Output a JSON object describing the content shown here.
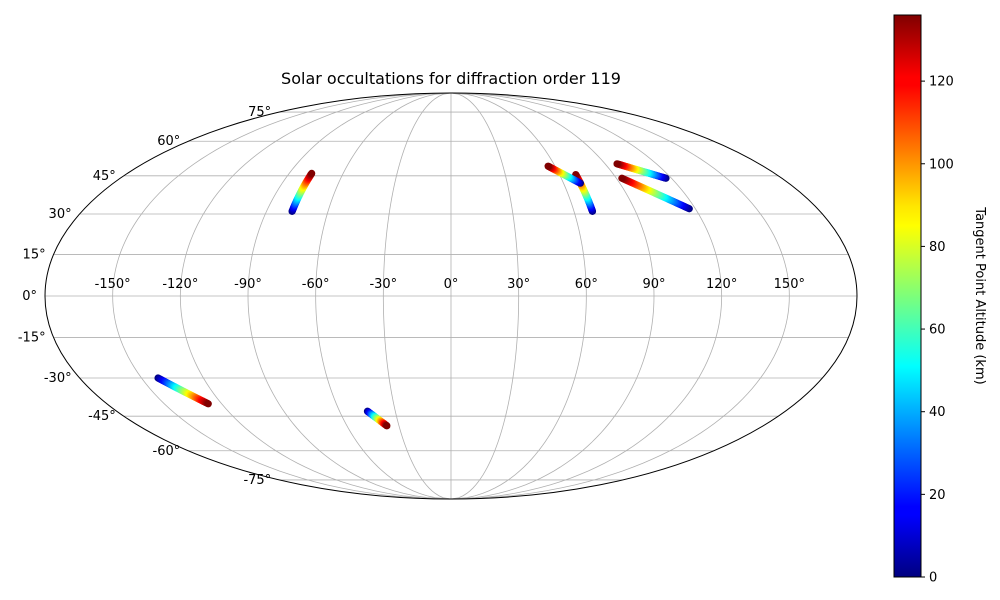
{
  "chart_data": {
    "type": "scatter",
    "projection": "mollweide",
    "title": "Solar occultations for diffraction order 119",
    "lon_ticks": [
      -150,
      -120,
      -90,
      -60,
      -30,
      0,
      30,
      60,
      90,
      120,
      150
    ],
    "lon_tick_labels": [
      "-150°",
      "-120°",
      "-90°",
      "-60°",
      "-30°",
      "0°",
      "30°",
      "60°",
      "90°",
      "120°",
      "150°"
    ],
    "lat_ticks": [
      75,
      60,
      45,
      30,
      15,
      0,
      -15,
      -30,
      -45,
      -60,
      -75
    ],
    "lat_tick_labels": [
      "75°",
      "60°",
      "45°",
      "30°",
      "15°",
      "0°",
      "-15°",
      "-30°",
      "-45°",
      "-60°",
      "-75°"
    ],
    "grid": true,
    "colorbar": {
      "label": "Tangent Point Altitude (km)",
      "colormap": "jet",
      "range": [
        0,
        136
      ],
      "ticks": [
        0,
        20,
        40,
        60,
        80,
        100,
        120
      ],
      "tick_labels": [
        "0",
        "20",
        "40",
        "60",
        "80",
        "100",
        "120"
      ]
    },
    "tracks": [
      {
        "start": {
          "lon": -77.5,
          "lat": 31,
          "alt": 0
        },
        "end": {
          "lon": -77.5,
          "lat": 46,
          "alt": 136
        }
      },
      {
        "start": {
          "lon": 69,
          "lat": 31,
          "alt": 0
        },
        "end": {
          "lon": 69,
          "lat": 45.5,
          "alt": 136
        }
      },
      {
        "start": {
          "lon": 69,
          "lat": 42,
          "alt": 0
        },
        "end": {
          "lon": 56,
          "lat": 49,
          "alt": 136
        }
      },
      {
        "start": {
          "lon": 117,
          "lat": 44,
          "alt": 0
        },
        "end": {
          "lon": 97,
          "lat": 50,
          "alt": 136
        }
      },
      {
        "start": {
          "lon": 117,
          "lat": 32,
          "alt": 0
        },
        "end": {
          "lon": 93,
          "lat": 44,
          "alt": 136
        }
      },
      {
        "start": {
          "lon": -142,
          "lat": -30,
          "alt": 0
        },
        "end": {
          "lon": -127,
          "lat": -40,
          "alt": 136
        }
      },
      {
        "start": {
          "lon": -45,
          "lat": -43,
          "alt": 0
        },
        "end": {
          "lon": -37,
          "lat": -49,
          "alt": 136
        }
      }
    ]
  }
}
